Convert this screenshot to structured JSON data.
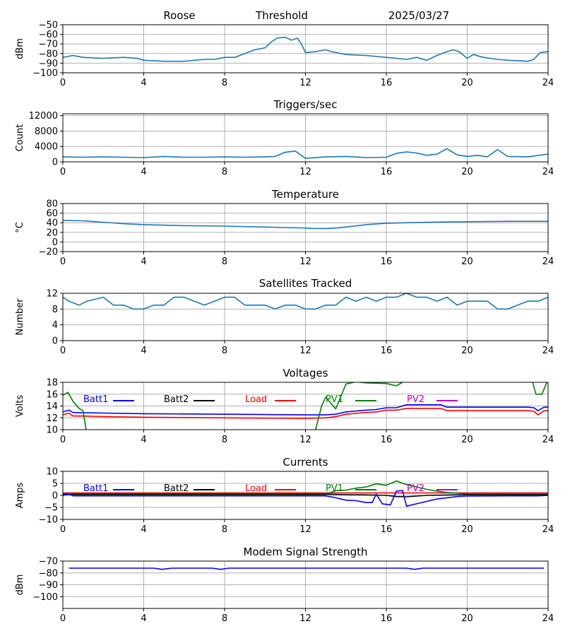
{
  "header": {
    "station": "Roose",
    "mode": "Threshold",
    "date": "2025/03/27"
  },
  "colors": {
    "default_series": "#1f77b4",
    "batt1": "#0000ff",
    "batt2": "#000000",
    "load": "#ff0000",
    "pv1": "#008000",
    "pv2": "#bf00bf"
  },
  "chart_data": [
    {
      "type": "line",
      "title": "",
      "ylabel": "dBm",
      "xlim": [
        0,
        24
      ],
      "ylim": [
        -100,
        -50
      ],
      "xticks": [
        "0",
        "4",
        "8",
        "12",
        "16",
        "20",
        "24"
      ],
      "yticks": [
        "−100",
        "−90",
        "−80",
        "−70",
        "−60",
        "−50"
      ],
      "grid": true,
      "series": [
        {
          "color": "#1f77b4",
          "x": [
            0,
            0.5,
            1,
            2,
            3,
            3.7,
            4,
            5,
            6,
            7,
            7.5,
            8,
            8.5,
            9,
            9.5,
            10,
            10.3,
            10.6,
            11,
            11.3,
            11.6,
            11.8,
            12,
            12.5,
            13,
            13.3,
            14,
            15,
            16,
            17,
            17.5,
            18,
            18.5,
            19,
            19.3,
            19.6,
            20,
            20.3,
            20.8,
            21.5,
            22,
            23,
            23.3,
            23.6,
            24
          ],
          "y": [
            -84,
            -82,
            -84,
            -85,
            -84,
            -85,
            -87,
            -88,
            -88,
            -86,
            -86,
            -84,
            -84,
            -80,
            -76,
            -74,
            -68,
            -64,
            -63,
            -66,
            -64,
            -70,
            -79,
            -78,
            -76,
            -78,
            -81,
            -82,
            -84,
            -86,
            -84,
            -87,
            -82,
            -78,
            -76,
            -78,
            -85,
            -81,
            -84,
            -86,
            -87,
            -88,
            -86,
            -79,
            -78
          ]
        }
      ]
    },
    {
      "type": "line",
      "title": "Triggers/sec",
      "ylabel": "Count",
      "xlim": [
        0,
        24
      ],
      "ylim": [
        0,
        12500
      ],
      "xticks": [
        "0",
        "4",
        "8",
        "12",
        "16",
        "20",
        "24"
      ],
      "yticks": [
        "0",
        "4000",
        "8000",
        "12000"
      ],
      "grid": true,
      "series": [
        {
          "color": "#1f77b4",
          "x": [
            0,
            1,
            2,
            3,
            4,
            5,
            6,
            7,
            8,
            9,
            10,
            10.5,
            11,
            11.5,
            12,
            13,
            14,
            15,
            16,
            16.5,
            17,
            17.5,
            18,
            18.5,
            19,
            19.5,
            20,
            20.5,
            21,
            21.5,
            22,
            23,
            24
          ],
          "y": [
            1300,
            1200,
            1300,
            1200,
            1100,
            1400,
            1200,
            1200,
            1300,
            1200,
            1300,
            1400,
            2500,
            2800,
            900,
            1300,
            1400,
            1100,
            1200,
            2200,
            2600,
            2300,
            1700,
            2000,
            3400,
            1800,
            1400,
            1700,
            1300,
            3200,
            1400,
            1300,
            2000
          ]
        }
      ]
    },
    {
      "type": "line",
      "title": "Temperature",
      "ylabel": "°C",
      "xlim": [
        0,
        24
      ],
      "ylim": [
        -20,
        80
      ],
      "xticks": [
        "0",
        "4",
        "8",
        "12",
        "16",
        "20",
        "24"
      ],
      "yticks": [
        "−20",
        "0",
        "20",
        "40",
        "60",
        "80"
      ],
      "grid": true,
      "series": [
        {
          "color": "#1f77b4",
          "x": [
            0,
            1,
            2,
            3,
            4,
            5,
            6,
            8,
            10,
            11,
            12,
            12.5,
            13,
            13.5,
            14,
            15,
            16,
            17,
            18,
            20,
            22,
            24
          ],
          "y": [
            45,
            44,
            41,
            38,
            36,
            35,
            34,
            33,
            31,
            30,
            29,
            28,
            28,
            29,
            31,
            36,
            39,
            40,
            41,
            42,
            43,
            43
          ]
        }
      ]
    },
    {
      "type": "line",
      "title": "Satellites Tracked",
      "ylabel": "Number",
      "xlim": [
        0,
        24
      ],
      "ylim": [
        0,
        12
      ],
      "xticks": [
        "0",
        "4",
        "8",
        "12",
        "16",
        "20",
        "24"
      ],
      "yticks": [
        "0",
        "4",
        "8",
        "12"
      ],
      "grid": true,
      "series": [
        {
          "color": "#1f77b4",
          "x": [
            0,
            0.3,
            0.8,
            1.2,
            2,
            2.5,
            3,
            3.5,
            4,
            4.5,
            5,
            5.5,
            6,
            6.5,
            7,
            7.5,
            8,
            8.5,
            9,
            9.5,
            10,
            10.5,
            11,
            11.5,
            12,
            12.5,
            13,
            13.5,
            14,
            14.5,
            15,
            15.5,
            16,
            16.5,
            17,
            17.5,
            18,
            18.5,
            19,
            19.5,
            20,
            20.5,
            21,
            21.5,
            22,
            22.5,
            23,
            23.5,
            24
          ],
          "y": [
            11,
            10,
            9,
            10,
            11,
            9,
            9,
            8,
            8,
            9,
            9,
            11,
            11,
            10,
            9,
            10,
            11,
            11,
            9,
            9,
            9,
            8,
            9,
            9,
            8,
            8,
            9,
            9,
            11,
            10,
            11,
            10,
            11,
            11,
            12,
            11,
            11,
            10,
            11,
            9,
            10,
            10,
            10,
            8,
            8,
            9,
            10,
            10,
            11
          ]
        }
      ]
    },
    {
      "type": "line",
      "title": "Voltages",
      "ylabel": "Volts",
      "xlim": [
        0,
        24
      ],
      "ylim": [
        10,
        18
      ],
      "xticks": [
        "0",
        "4",
        "8",
        "12",
        "16",
        "20",
        "24"
      ],
      "yticks": [
        "10",
        "12",
        "14",
        "16",
        "18"
      ],
      "grid": true,
      "legend": [
        "Batt1",
        "Batt2",
        "Load",
        "PV1",
        "PV2"
      ],
      "series": [
        {
          "name": "Batt1",
          "color": "#0000ff",
          "x": [
            0,
            0.3,
            0.5,
            1,
            2,
            4,
            6,
            8,
            10,
            12,
            13,
            13.5,
            14,
            15,
            15.5,
            16,
            16.5,
            17,
            18,
            18.7,
            19,
            20,
            23,
            23.3,
            23.5,
            23.8,
            24
          ],
          "y": [
            13.0,
            13.3,
            12.9,
            12.85,
            12.8,
            12.7,
            12.65,
            12.6,
            12.55,
            12.5,
            12.5,
            12.6,
            13.0,
            13.3,
            13.4,
            13.7,
            13.7,
            14.2,
            14.2,
            14.2,
            13.8,
            13.8,
            13.8,
            13.7,
            13.2,
            13.8,
            13.8
          ]
        },
        {
          "name": "Load",
          "color": "#ff0000",
          "x": [
            0,
            0.3,
            0.5,
            1,
            2,
            4,
            6,
            8,
            10,
            12,
            13,
            13.5,
            14,
            15,
            15.5,
            16,
            16.5,
            17,
            18,
            18.7,
            19,
            20,
            23,
            23.3,
            23.5,
            23.8,
            24
          ],
          "y": [
            12.5,
            12.8,
            12.3,
            12.3,
            12.2,
            12.1,
            12.05,
            12.0,
            11.95,
            11.9,
            12.0,
            12.2,
            12.6,
            12.9,
            13.0,
            13.3,
            13.3,
            13.6,
            13.6,
            13.6,
            13.2,
            13.2,
            13.2,
            13.1,
            12.5,
            13.2,
            13.2
          ]
        },
        {
          "name": "PV1",
          "color": "#008000",
          "x": [
            0,
            0.25,
            0.5,
            0.8,
            1,
            1.1,
            1.15,
            1.2,
            12.4,
            12.5,
            12.8,
            13.0,
            13.5,
            14,
            14.5,
            15,
            16,
            16.5,
            16.8,
            16.9,
            23.2,
            23.4,
            23.7,
            24
          ],
          "y": [
            15.8,
            16.3,
            14.8,
            13.6,
            13.2,
            11.0,
            10.0,
            9.5,
            9.5,
            10.0,
            14.0,
            15.5,
            13.5,
            17.7,
            18.1,
            17.9,
            17.8,
            17.4,
            18.0,
            18.5,
            18.5,
            16.0,
            16.0,
            18.5
          ]
        }
      ]
    },
    {
      "type": "line",
      "title": "Currents",
      "ylabel": "Amps",
      "xlim": [
        0,
        24
      ],
      "ylim": [
        -10,
        10
      ],
      "xticks": [
        "0",
        "4",
        "8",
        "12",
        "16",
        "20",
        "24"
      ],
      "yticks": [
        "−10",
        "−5",
        "0",
        "5",
        "10"
      ],
      "grid": true,
      "legend": [
        "Batt1",
        "Batt2",
        "Load",
        "PV1",
        "PV2"
      ],
      "series": [
        {
          "name": "Load",
          "color": "#ff0000",
          "x": [
            0,
            24
          ],
          "y": [
            1.0,
            1.0
          ]
        },
        {
          "name": "PV1",
          "color": "#008000",
          "x": [
            0,
            13,
            13.5,
            14,
            14.5,
            15,
            15.5,
            16,
            16.5,
            17,
            17.5,
            18,
            18.5,
            19,
            20,
            24
          ],
          "y": [
            0.3,
            0.3,
            2.0,
            2.2,
            3.0,
            3.5,
            4.8,
            4.2,
            6.0,
            4.5,
            3.5,
            2.5,
            1.8,
            1.2,
            0.6,
            0.5
          ]
        },
        {
          "name": "Batt2",
          "color": "#000000",
          "x": [
            0,
            13,
            14,
            15,
            16,
            16.5,
            17,
            18,
            20,
            24
          ],
          "y": [
            0.5,
            0.5,
            0.3,
            0.2,
            0.0,
            -0.5,
            -0.6,
            0.0,
            0.3,
            0.3
          ]
        },
        {
          "name": "Batt1",
          "color": "#0000ff",
          "x": [
            0,
            0.3,
            0.5,
            1,
            2,
            4,
            6,
            8,
            10,
            12,
            13,
            13.5,
            14,
            14.5,
            15,
            15.3,
            15.5,
            15.8,
            16.2,
            16.5,
            16.8,
            17.0,
            17.5,
            18,
            18.5,
            19,
            19.5,
            20,
            22,
            23.5,
            24
          ],
          "y": [
            0,
            0.5,
            -0.2,
            -0.2,
            -0.2,
            -0.2,
            -0.2,
            -0.2,
            -0.2,
            -0.2,
            -0.2,
            -1.0,
            -2.0,
            -2.2,
            -3.0,
            -3.0,
            0.5,
            -3.5,
            -4.0,
            1.8,
            2.0,
            -4.5,
            -3.5,
            -2.5,
            -1.5,
            -1.0,
            -0.5,
            -0.3,
            -0.2,
            -0.2,
            0.0
          ]
        }
      ]
    },
    {
      "type": "line",
      "title": "Modem Signal Strength",
      "ylabel": "dBm",
      "xlim": [
        0,
        24
      ],
      "ylim": [
        -110,
        -70
      ],
      "xticks": [
        "0",
        "4",
        "8",
        "12",
        "16",
        "20",
        "24"
      ],
      "yticks": [
        "−100",
        "−90",
        "−80",
        "−70"
      ],
      "grid": true,
      "series": [
        {
          "color": "#0000ff",
          "x": [
            0.3,
            4.5,
            4.9,
            5.4,
            7.4,
            7.8,
            8.2,
            17.0,
            17.4,
            17.8,
            23.8
          ],
          "y": [
            -76,
            -76,
            -77,
            -76,
            -76,
            -77,
            -76,
            -76,
            -77,
            -76,
            -76
          ]
        }
      ]
    }
  ]
}
